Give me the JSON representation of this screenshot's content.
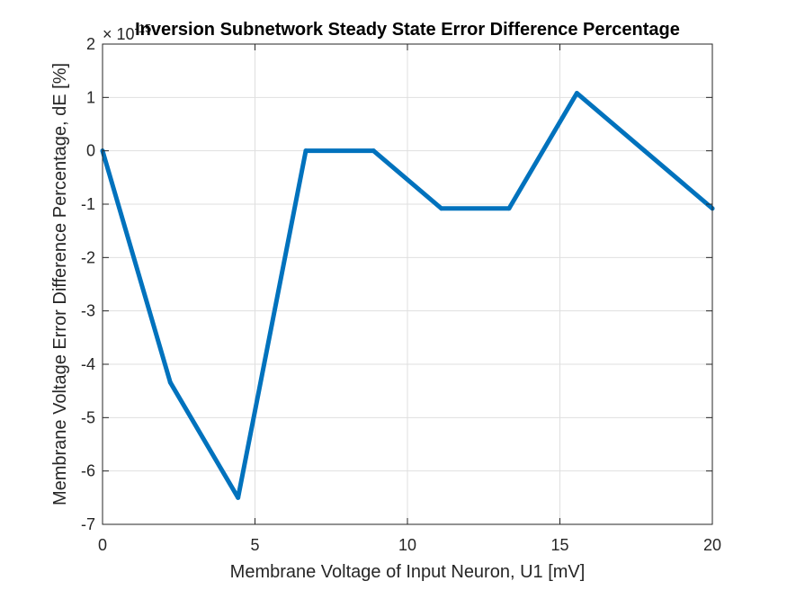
{
  "chart_data": {
    "type": "line",
    "title": "Inversion Subnetwork Steady State Error Difference Percentage",
    "xlabel": "Membrane Voltage of Input Neuron, U1 [mV]",
    "ylabel": "Membrane Voltage Error Difference Percentage, dE [%]",
    "xlim": [
      0,
      20
    ],
    "ylim": [
      -7,
      2
    ],
    "xticks": [
      "0",
      "5",
      "10",
      "15",
      "20"
    ],
    "yticks": [
      "2",
      "1",
      "0",
      "-1",
      "-2",
      "-3",
      "-4",
      "-5",
      "-6",
      "-7"
    ],
    "y_multiplier_base": "× 10",
    "y_multiplier_exponent": "-15",
    "grid": true,
    "series": [
      {
        "color": "#0072BD",
        "x": [
          0,
          2.222,
          4.444,
          6.667,
          8.889,
          11.111,
          13.333,
          15.556,
          17.778,
          20
        ],
        "y": [
          0,
          -4.34,
          -6.5,
          0,
          0,
          -1.08,
          -1.08,
          1.08,
          0,
          -1.08
        ]
      }
    ]
  }
}
